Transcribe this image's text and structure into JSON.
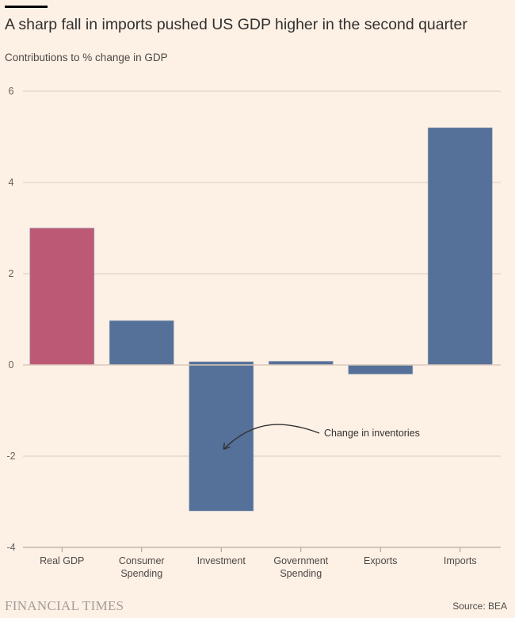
{
  "header": {
    "title": "A sharp fall in imports pushed US GDP higher in the second quarter",
    "subtitle": "Contributions to % change in GDP"
  },
  "footer": {
    "logo": "FINANCIAL TIMES",
    "source": "Source: BEA"
  },
  "colors": {
    "background": "#fdf1e6",
    "highlight_bar": "#bc5a75",
    "bar": "#557199",
    "gridline": "#d9c9bb",
    "axis": "#a79a90"
  },
  "chart_data": {
    "type": "bar",
    "title": "A sharp fall in imports pushed US GDP higher in the second quarter",
    "subtitle": "Contributions to % change in GDP",
    "xlabel": "",
    "ylabel": "Contributions to % change in GDP",
    "categories": [
      "Real GDP",
      "Consumer Spending",
      "Investment",
      "Government Spending",
      "Exports",
      "Imports"
    ],
    "category_lines": [
      [
        "Real GDP"
      ],
      [
        "Consumer",
        "Spending"
      ],
      [
        "Investment"
      ],
      [
        "Government",
        "Spending"
      ],
      [
        "Exports"
      ],
      [
        "Imports"
      ]
    ],
    "values": [
      3.0,
      0.97,
      -3.2,
      0.08,
      -0.2,
      5.2
    ],
    "bar_tops": [
      3.0,
      0.97,
      0.07,
      0.08,
      0.0,
      5.2
    ],
    "bar_bottoms": [
      0,
      0,
      -3.2,
      0,
      -0.2,
      0
    ],
    "highlight": [
      "Real GDP"
    ],
    "ylim": [
      -4,
      6
    ],
    "yticks": [
      -4,
      -2,
      0,
      2,
      4,
      6
    ],
    "ytick_labels": [
      "-4",
      "-2",
      "0",
      "2",
      "4",
      "6"
    ],
    "grid": true,
    "annotations": [
      {
        "text": "Change in inventories",
        "target_category": "Investment",
        "target_value": -1.85
      }
    ],
    "source": "Source: BEA"
  }
}
